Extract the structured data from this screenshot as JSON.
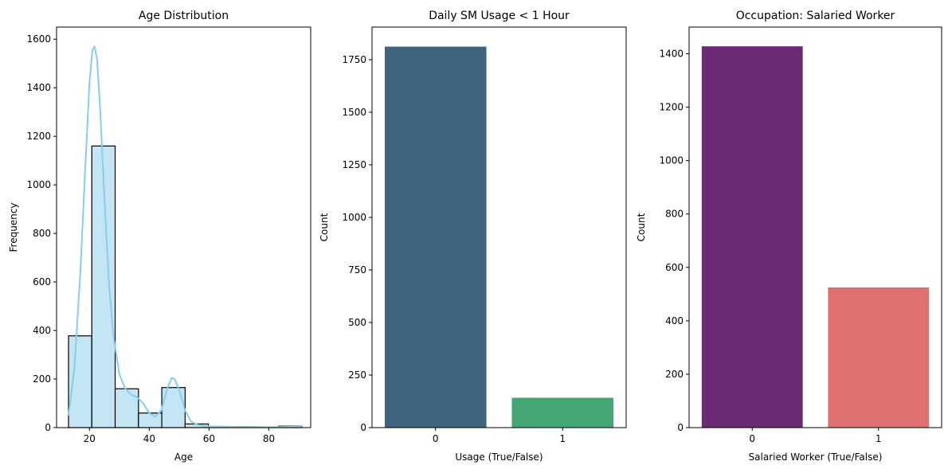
{
  "chart_data": [
    {
      "type": "bar",
      "subtype": "histogram-with-kde",
      "title": "Age Distribution",
      "xlabel": "Age",
      "ylabel": "Frequency",
      "xlim": [
        9,
        94
      ],
      "ylim": [
        0,
        1650
      ],
      "xticks": [
        20,
        40,
        60,
        80
      ],
      "xtick_labels": [
        "20",
        "40",
        "60",
        "80"
      ],
      "yticks": [
        0,
        200,
        400,
        600,
        800,
        1000,
        1200,
        1400,
        1600
      ],
      "ytick_labels": [
        "0",
        "200",
        "400",
        "600",
        "800",
        "1000",
        "1200",
        "1400",
        "1600"
      ],
      "bins": [
        {
          "x0": 13,
          "x1": 20.8,
          "value": 378
        },
        {
          "x0": 20.8,
          "x1": 28.6,
          "value": 1160
        },
        {
          "x0": 28.6,
          "x1": 36.4,
          "value": 160
        },
        {
          "x0": 36.4,
          "x1": 44.2,
          "value": 60
        },
        {
          "x0": 44.2,
          "x1": 52.0,
          "value": 165
        },
        {
          "x0": 52.0,
          "x1": 59.8,
          "value": 15
        },
        {
          "x0": 59.8,
          "x1": 67.6,
          "value": 3
        },
        {
          "x0": 67.6,
          "x1": 75.4,
          "value": 4
        },
        {
          "x0": 75.4,
          "x1": 83.2,
          "value": 1
        },
        {
          "x0": 83.2,
          "x1": 91.0,
          "value": 6
        }
      ],
      "kde": {
        "x": [
          13,
          15,
          17,
          18.5,
          20,
          21,
          21.7,
          22.5,
          23.5,
          25,
          26.5,
          28,
          30,
          32,
          34,
          36,
          38,
          40,
          42,
          44,
          46,
          47.5,
          48.5,
          50,
          52,
          54,
          56,
          58,
          60,
          65,
          70,
          75,
          80,
          85,
          91
        ],
        "y": [
          50,
          250,
          650,
          1050,
          1420,
          1555,
          1570,
          1520,
          1330,
          950,
          600,
          380,
          220,
          160,
          135,
          125,
          100,
          60,
          45,
          70,
          160,
          205,
          200,
          155,
          70,
          25,
          12,
          8,
          5,
          4,
          3,
          3,
          2,
          3,
          4
        ]
      },
      "colors": {
        "fill": "#c4e5f4",
        "edge": "#000000",
        "kde": "#87ceeb"
      }
    },
    {
      "type": "bar",
      "title": "Daily SM Usage < 1 Hour",
      "xlabel": "Usage (True/False)",
      "ylabel": "Count",
      "categories": [
        "0",
        "1"
      ],
      "values": [
        1812,
        142
      ],
      "ylim": [
        0,
        1905
      ],
      "yticks": [
        0,
        250,
        500,
        750,
        1000,
        1250,
        1500,
        1750
      ],
      "ytick_labels": [
        "0",
        "250",
        "500",
        "750",
        "1000",
        "1250",
        "1500",
        "1750"
      ],
      "colors": [
        "#3d6580",
        "#44a674"
      ]
    },
    {
      "type": "bar",
      "title": "Occupation: Salaried Worker",
      "xlabel": "Salaried Worker (True/False)",
      "ylabel": "Count",
      "categories": [
        "0",
        "1"
      ],
      "values": [
        1428,
        525
      ],
      "ylim": [
        0,
        1500
      ],
      "yticks": [
        0,
        200,
        400,
        600,
        800,
        1000,
        1200,
        1400
      ],
      "ytick_labels": [
        "0",
        "200",
        "400",
        "600",
        "800",
        "1000",
        "1200",
        "1400"
      ],
      "colors": [
        "#6a2b74",
        "#e07170"
      ]
    }
  ]
}
